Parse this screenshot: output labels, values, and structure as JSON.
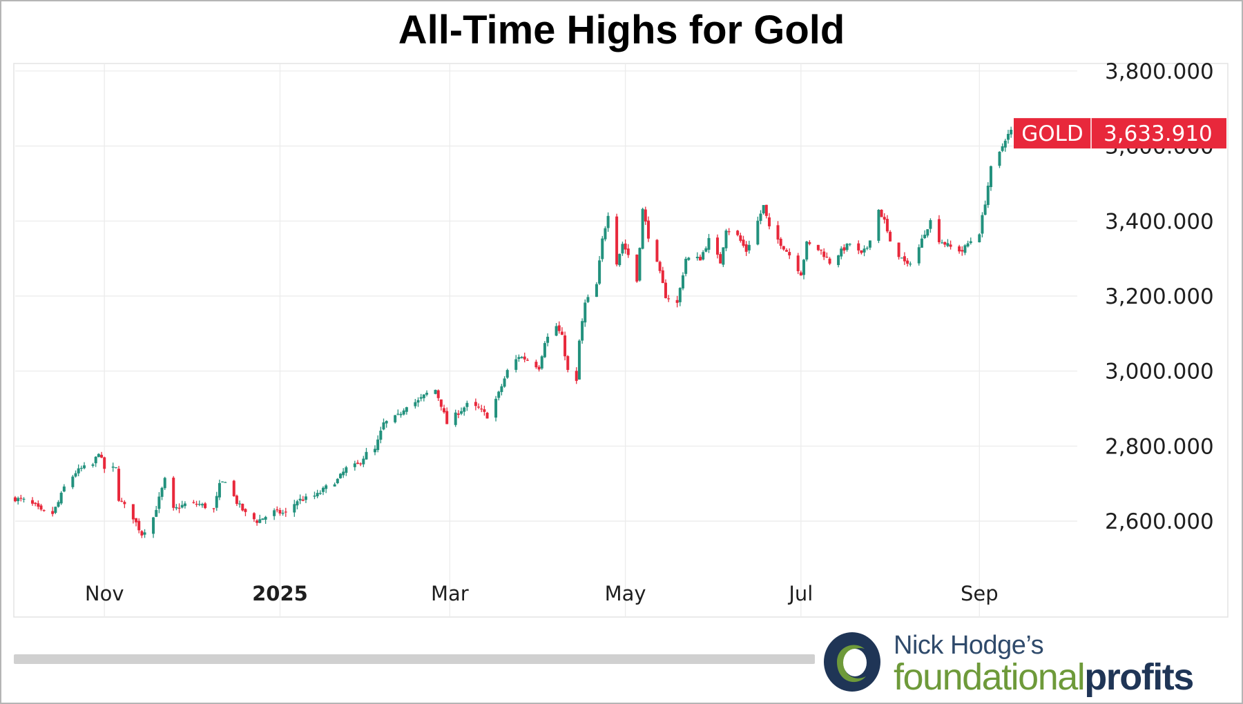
{
  "chart_data": {
    "type": "candlestick",
    "title": "All-Time Highs for Gold",
    "ylim": [
      2440,
      3820
    ],
    "y_ticks": [
      2600,
      2800,
      3000,
      3200,
      3400,
      3600,
      3800
    ],
    "y_tick_labels": [
      "2,600.000",
      "2,800.000",
      "3,000.000",
      "3,200.000",
      "3,400.000",
      "3,600.000",
      "3,800.000"
    ],
    "x_range": [
      "2024-10-01",
      "2025-10-05"
    ],
    "x_ticks": [
      {
        "date": "2024-11-01",
        "label": "Nov",
        "bold": false
      },
      {
        "date": "2025-01-01",
        "label": "2025",
        "bold": true
      },
      {
        "date": "2025-03-01",
        "label": "Mar",
        "bold": false
      },
      {
        "date": "2025-05-01",
        "label": "May",
        "bold": false
      },
      {
        "date": "2025-07-01",
        "label": "Jul",
        "bold": false
      },
      {
        "date": "2025-09-01",
        "label": "Sep",
        "bold": false
      }
    ],
    "series": [
      {
        "name": "GOLD",
        "last_value": "3,633.910",
        "up_color": "#22917d",
        "down_color": "#e8283b",
        "close_path": [
          [
            "2024-10-01",
            2660
          ],
          [
            "2024-10-04",
            2655
          ],
          [
            "2024-10-08",
            2640
          ],
          [
            "2024-10-10",
            2625
          ],
          [
            "2024-10-14",
            2620
          ],
          [
            "2024-10-16",
            2650
          ],
          [
            "2024-10-18",
            2690
          ],
          [
            "2024-10-22",
            2730
          ],
          [
            "2024-10-24",
            2740
          ],
          [
            "2024-10-28",
            2750
          ],
          [
            "2024-10-30",
            2785
          ],
          [
            "2024-11-01",
            2740
          ],
          [
            "2024-11-05",
            2740
          ],
          [
            "2024-11-06",
            2660
          ],
          [
            "2024-11-08",
            2640
          ],
          [
            "2024-11-11",
            2610
          ],
          [
            "2024-11-14",
            2565
          ],
          [
            "2024-11-18",
            2610
          ],
          [
            "2024-11-22",
            2710
          ],
          [
            "2024-11-25",
            2630
          ],
          [
            "2024-11-29",
            2645
          ],
          [
            "2024-12-04",
            2645
          ],
          [
            "2024-12-09",
            2630
          ],
          [
            "2024-12-11",
            2695
          ],
          [
            "2024-12-13",
            2710
          ],
          [
            "2024-12-17",
            2650
          ],
          [
            "2024-12-20",
            2620
          ],
          [
            "2024-12-24",
            2600
          ],
          [
            "2024-12-30",
            2625
          ],
          [
            "2025-01-03",
            2620
          ],
          [
            "2025-01-07",
            2655
          ],
          [
            "2025-01-10",
            2660
          ],
          [
            "2025-01-14",
            2670
          ],
          [
            "2025-01-17",
            2690
          ],
          [
            "2025-01-21",
            2710
          ],
          [
            "2025-01-24",
            2740
          ],
          [
            "2025-01-28",
            2750
          ],
          [
            "2025-01-31",
            2780
          ],
          [
            "2025-02-03",
            2790
          ],
          [
            "2025-02-06",
            2860
          ],
          [
            "2025-02-11",
            2880
          ],
          [
            "2025-02-14",
            2910
          ],
          [
            "2025-02-18",
            2920
          ],
          [
            "2025-02-21",
            2940
          ],
          [
            "2025-02-24",
            2950
          ],
          [
            "2025-02-26",
            2910
          ],
          [
            "2025-02-28",
            2860
          ],
          [
            "2025-03-04",
            2890
          ],
          [
            "2025-03-07",
            2910
          ],
          [
            "2025-03-11",
            2900
          ],
          [
            "2025-03-14",
            2880
          ],
          [
            "2025-03-18",
            2940
          ],
          [
            "2025-03-21",
            3000
          ],
          [
            "2025-03-25",
            3040
          ],
          [
            "2025-03-28",
            3030
          ],
          [
            "2025-04-01",
            3010
          ],
          [
            "2025-04-03",
            3080
          ],
          [
            "2025-04-07",
            3120
          ],
          [
            "2025-04-09",
            3090
          ],
          [
            "2025-04-11",
            3000
          ],
          [
            "2025-04-14",
            2970
          ],
          [
            "2025-04-15",
            3080
          ],
          [
            "2025-04-17",
            3180
          ],
          [
            "2025-04-21",
            3230
          ],
          [
            "2025-04-23",
            3350
          ],
          [
            "2025-04-25",
            3420
          ],
          [
            "2025-04-28",
            3290
          ],
          [
            "2025-04-30",
            3340
          ],
          [
            "2025-05-02",
            3310
          ],
          [
            "2025-05-05",
            3240
          ],
          [
            "2025-05-07",
            3430
          ],
          [
            "2025-05-09",
            3360
          ],
          [
            "2025-05-13",
            3260
          ],
          [
            "2025-05-15",
            3200
          ],
          [
            "2025-05-19",
            3180
          ],
          [
            "2025-05-20",
            3220
          ],
          [
            "2025-05-22",
            3300
          ],
          [
            "2025-05-27",
            3300
          ],
          [
            "2025-05-30",
            3350
          ],
          [
            "2025-06-03",
            3290
          ],
          [
            "2025-06-05",
            3380
          ],
          [
            "2025-06-09",
            3360
          ],
          [
            "2025-06-12",
            3320
          ],
          [
            "2025-06-16",
            3400
          ],
          [
            "2025-06-18",
            3440
          ],
          [
            "2025-06-20",
            3380
          ],
          [
            "2025-06-24",
            3340
          ],
          [
            "2025-06-27",
            3310
          ],
          [
            "2025-07-01",
            3260
          ],
          [
            "2025-07-03",
            3340
          ],
          [
            "2025-07-08",
            3320
          ],
          [
            "2025-07-11",
            3290
          ],
          [
            "2025-07-15",
            3320
          ],
          [
            "2025-07-18",
            3340
          ],
          [
            "2025-07-22",
            3310
          ],
          [
            "2025-07-24",
            3330
          ],
          [
            "2025-07-28",
            3430
          ],
          [
            "2025-07-30",
            3400
          ],
          [
            "2025-08-01",
            3340
          ],
          [
            "2025-08-05",
            3300
          ],
          [
            "2025-08-07",
            3280
          ],
          [
            "2025-08-11",
            3330
          ],
          [
            "2025-08-13",
            3370
          ],
          [
            "2025-08-15",
            3400
          ],
          [
            "2025-08-18",
            3350
          ],
          [
            "2025-08-20",
            3340
          ],
          [
            "2025-08-22",
            3330
          ],
          [
            "2025-08-26",
            3320
          ],
          [
            "2025-08-28",
            3340
          ],
          [
            "2025-09-01",
            3370
          ],
          [
            "2025-09-03",
            3450
          ],
          [
            "2025-09-05",
            3540
          ],
          [
            "2025-09-08",
            3580
          ],
          [
            "2025-09-10",
            3620
          ],
          [
            "2025-09-12",
            3640
          ],
          [
            "2025-09-15",
            3633.91
          ]
        ]
      }
    ]
  },
  "branding": {
    "line1": "Nick Hodge’s",
    "line2_part1": "foundational",
    "line2_part2": "profits",
    "colors": {
      "navy": "#1f3556",
      "green": "#6e9a3a",
      "gray": "#8a9099"
    }
  }
}
